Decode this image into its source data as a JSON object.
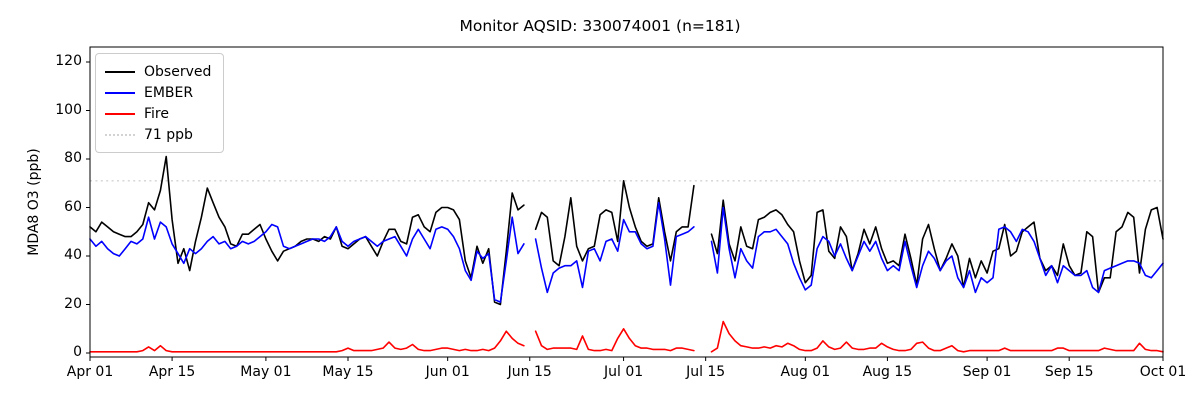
{
  "chart_data": {
    "type": "line",
    "title": "Monitor AQSID: 330074001 (n=181)",
    "ylabel": "MDA8 O3 (ppb)",
    "xlabel": "",
    "n_points_label": 181,
    "x_start": "Apr 01",
    "x_end": "Oct 01",
    "n_days": 184,
    "grid": false,
    "legend_position": "upper-left",
    "ylim": [
      -2,
      126
    ],
    "y_ticks": [
      0,
      20,
      40,
      60,
      80,
      100,
      120
    ],
    "x_ticks": [
      {
        "label": "Apr 01",
        "day_index": 0
      },
      {
        "label": "Apr 15",
        "day_index": 14
      },
      {
        "label": "May 01",
        "day_index": 30
      },
      {
        "label": "May 15",
        "day_index": 44
      },
      {
        "label": "Jun 01",
        "day_index": 61
      },
      {
        "label": "Jun 15",
        "day_index": 75
      },
      {
        "label": "Jul 01",
        "day_index": 91
      },
      {
        "label": "Jul 15",
        "day_index": 105
      },
      {
        "label": "Aug 01",
        "day_index": 122
      },
      {
        "label": "Aug 15",
        "day_index": 136
      },
      {
        "label": "Sep 01",
        "day_index": 153
      },
      {
        "label": "Sep 15",
        "day_index": 167
      },
      {
        "label": "Oct 01",
        "day_index": 183
      }
    ],
    "ref_line": {
      "label": "71 ppb",
      "value": 71,
      "color": "#d3d3d3",
      "style": "dotted"
    },
    "missing_days": [
      "Jun 15",
      "Jul 14",
      "Jul 15"
    ],
    "series": [
      {
        "name": "Observed",
        "color": "#000000",
        "values": [
          52,
          50,
          54,
          52,
          50,
          49,
          48,
          48,
          50,
          53,
          62,
          59,
          67,
          81,
          55,
          37,
          43,
          34,
          46,
          56,
          68,
          62,
          56,
          52,
          45,
          44,
          49,
          49,
          51,
          53,
          47,
          42,
          38,
          42,
          43,
          44,
          46,
          47,
          47,
          46,
          48,
          47,
          52,
          44,
          43,
          45,
          47,
          48,
          44,
          40,
          46,
          51,
          51,
          46,
          45,
          56,
          57,
          52,
          50,
          58,
          60,
          60,
          59,
          55,
          38,
          31,
          44,
          37,
          43,
          21,
          20,
          42,
          66,
          59,
          61,
          null,
          51,
          58,
          56,
          38,
          36,
          48,
          64,
          44,
          38,
          43,
          44,
          57,
          59,
          58,
          46,
          71,
          60,
          52,
          46,
          44,
          45,
          64,
          50,
          38,
          50,
          52,
          52,
          69,
          null,
          null,
          49,
          41,
          63,
          45,
          38,
          52,
          44,
          43,
          55,
          56,
          58,
          59,
          57,
          53,
          50,
          38,
          29,
          32,
          58,
          59,
          42,
          39,
          52,
          48,
          34,
          41,
          51,
          45,
          52,
          43,
          37,
          38,
          36,
          49,
          39,
          28,
          47,
          53,
          43,
          34,
          39,
          45,
          40,
          27,
          39,
          31,
          38,
          33,
          42,
          43,
          53,
          40,
          42,
          50,
          52,
          54,
          39,
          34,
          36,
          32,
          45,
          36,
          32,
          33,
          50,
          48,
          25,
          31,
          31,
          50,
          52,
          58,
          56,
          33,
          51,
          59,
          60,
          47
        ]
      },
      {
        "name": "EMBER",
        "color": "#0000ff",
        "values": [
          47,
          44,
          46,
          43,
          41,
          40,
          43,
          46,
          45,
          47,
          56,
          47,
          54,
          52,
          45,
          41,
          37,
          43,
          41,
          43,
          46,
          48,
          45,
          46,
          43,
          44,
          46,
          45,
          46,
          48,
          50,
          53,
          52,
          44,
          43,
          44,
          45,
          46,
          47,
          47,
          46,
          48,
          52,
          46,
          44,
          46,
          47,
          48,
          46,
          44,
          46,
          47,
          48,
          44,
          40,
          47,
          51,
          47,
          43,
          51,
          52,
          51,
          48,
          43,
          34,
          30,
          42,
          39,
          41,
          22,
          21,
          38,
          56,
          41,
          45,
          null,
          47,
          35,
          25,
          33,
          35,
          36,
          36,
          38,
          27,
          42,
          43,
          38,
          46,
          47,
          42,
          55,
          50,
          50,
          45,
          43,
          44,
          62,
          47,
          28,
          48,
          49,
          50,
          52,
          null,
          null,
          46,
          33,
          60,
          43,
          31,
          43,
          38,
          35,
          48,
          50,
          50,
          51,
          48,
          45,
          37,
          31,
          26,
          28,
          43,
          48,
          46,
          40,
          45,
          39,
          34,
          40,
          46,
          42,
          46,
          39,
          34,
          36,
          34,
          46,
          36,
          27,
          36,
          42,
          39,
          34,
          38,
          40,
          31,
          27,
          34,
          25,
          31,
          29,
          31,
          51,
          52,
          50,
          46,
          51,
          50,
          46,
          39,
          32,
          36,
          29,
          36,
          34,
          32,
          32,
          34,
          27,
          25,
          34,
          35,
          36,
          37,
          38,
          38,
          37,
          32,
          31,
          34,
          37
        ]
      },
      {
        "name": "Fire",
        "color": "#ff0000",
        "values": [
          0.5,
          0.5,
          0.5,
          0.5,
          0.5,
          0.5,
          0.5,
          0.5,
          0.5,
          1,
          2.5,
          1,
          3,
          1,
          0.5,
          0.5,
          0.5,
          0.5,
          0.5,
          0.5,
          0.5,
          0.5,
          0.5,
          0.5,
          0.5,
          0.5,
          0.5,
          0.5,
          0.5,
          0.5,
          0.5,
          0.5,
          0.5,
          0.5,
          0.5,
          0.5,
          0.5,
          0.5,
          0.5,
          0.5,
          0.5,
          0.5,
          0.5,
          1,
          2,
          1,
          1,
          1,
          1,
          1.5,
          2,
          4.5,
          2,
          1.5,
          2,
          3.5,
          1.5,
          1,
          1,
          1.5,
          2,
          2,
          1.5,
          1,
          1.5,
          1,
          1,
          1.5,
          1,
          2,
          5,
          9,
          6,
          4,
          3,
          null,
          9,
          3,
          1.5,
          2,
          2,
          2,
          2,
          1.5,
          7,
          1.5,
          1,
          1,
          1.5,
          1,
          6,
          10,
          6,
          3,
          2,
          2,
          1.5,
          1.5,
          1.5,
          1,
          2,
          2,
          1.5,
          1,
          null,
          null,
          0.5,
          2,
          13,
          8,
          5,
          3,
          2.5,
          2,
          2,
          2.5,
          2,
          3,
          2.5,
          4,
          3,
          1.5,
          1,
          1,
          2,
          5,
          2.5,
          1.5,
          2,
          4.5,
          2,
          1.5,
          1.5,
          2,
          2,
          4,
          2.5,
          1.5,
          1,
          1,
          1.5,
          4,
          4.5,
          2,
          1,
          1,
          2,
          3,
          1,
          0.5,
          1,
          1,
          1,
          1,
          1,
          1,
          2,
          1,
          1,
          1,
          1,
          1,
          1,
          1,
          1,
          2,
          2,
          1,
          1,
          1,
          1,
          1,
          1,
          2,
          1.5,
          1,
          1,
          1,
          1,
          4,
          1.5,
          1,
          1,
          0.5
        ]
      }
    ]
  }
}
